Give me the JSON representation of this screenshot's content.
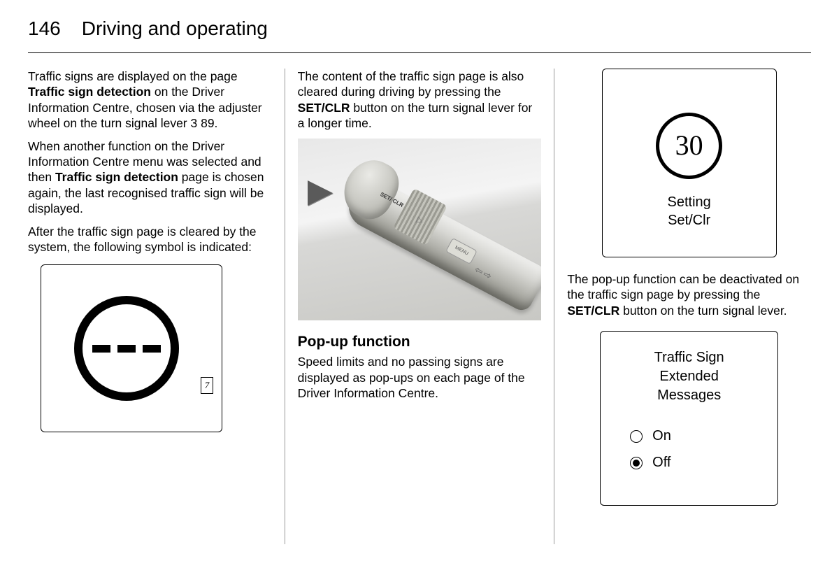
{
  "header": {
    "page_number": "146",
    "chapter_title": "Driving and operating"
  },
  "col1": {
    "p1_a": "Traffic signs are displayed on the page ",
    "p1_b": "Traffic sign detection",
    "p1_c": " on the Driver Information Centre, chosen via the adjuster wheel on the turn signal lever ",
    "p1_ref": "3",
    "p1_d": " 89.",
    "p2_a": "When another function on the Driver Information Centre menu was selected and then ",
    "p2_b": "Traffic sign detection",
    "p2_c": " page is chosen again, the last recognised traffic sign will be displayed.",
    "p3": "After the traffic sign page is cleared by the system, the following symbol is indicated:",
    "box1_corner": "7"
  },
  "col2": {
    "p1_a": "The content of the traffic sign page is also cleared during driving by pressing the ",
    "p1_b": "SET/CLR",
    "p1_c": " button on the turn signal lever for a longer time.",
    "lever": {
      "tip_label": "SET/\nCLR",
      "menu_label": "MENU"
    },
    "heading": "Pop-up function",
    "p2": "Speed limits and no passing signs are displayed as pop-ups on each page of the Driver Information Centre."
  },
  "col3": {
    "box2": {
      "speed": "30",
      "line1": "Setting",
      "line2": "Set/Clr"
    },
    "p1_a": "The pop-up function can be deactivated on the traffic sign page by pressing the ",
    "p1_b": "SET/CLR",
    "p1_c": " button on the turn signal lever.",
    "box3": {
      "title_l1": "Traffic Sign",
      "title_l2": "Extended",
      "title_l3": "Messages",
      "opt_on": "On",
      "opt_off": "Off",
      "selected": "off"
    }
  },
  "colors": {
    "text": "#000000",
    "background": "#ffffff",
    "divider": "#999999"
  }
}
